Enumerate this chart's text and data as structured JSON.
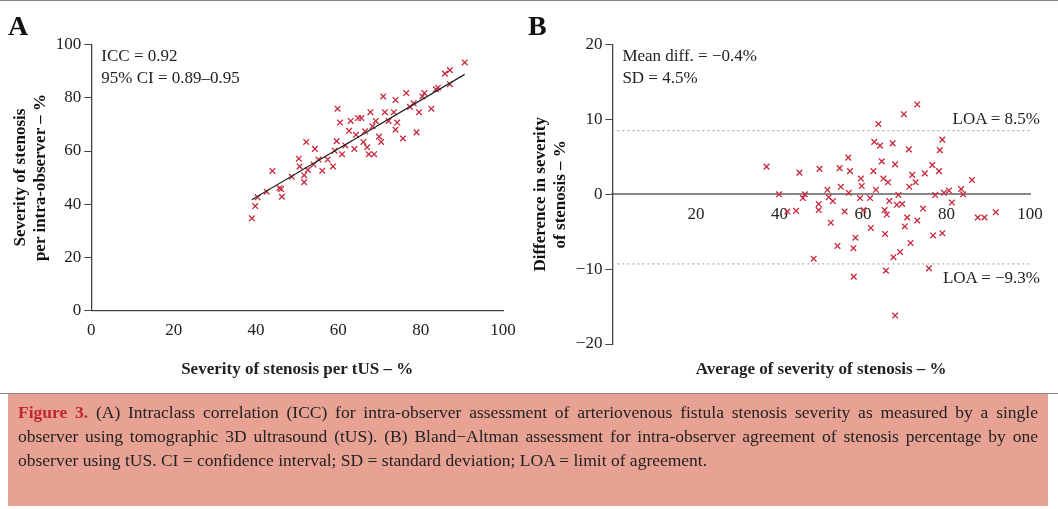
{
  "chart_data": [
    {
      "type": "scatter",
      "title": "A",
      "xlabel": "Severity of stenosis per tUS – %",
      "ylabel": "Severity of stenosis per intra-observer – %",
      "xlim": [
        0,
        100
      ],
      "xticks": [
        0,
        20,
        40,
        60,
        80,
        100
      ],
      "ylim": [
        0,
        100
      ],
      "yticks": [
        0,
        20,
        40,
        60,
        80,
        100
      ],
      "grid": false,
      "legend": false,
      "marker": "cross",
      "annotations": [
        "ICC = 0.92",
        "95% CI = 0.89–0.95"
      ],
      "series": [
        {
          "color": "#c8283c",
          "x": [
            39,
            39.8,
            40.4,
            42.6,
            44,
            45.7,
            46.3,
            46.1,
            48.7,
            50.4,
            50.6,
            51.7,
            51.7,
            52.2,
            52.6,
            54,
            54.3,
            55.2,
            56.1,
            57.4,
            58.7,
            59.1,
            59.6,
            59.8,
            60.4,
            60.9,
            61.7,
            62.6,
            63,
            63.9,
            64.3,
            64.8,
            65.6,
            66.1,
            66.5,
            67,
            67.4,
            67.8,
            68.3,
            68.7,
            69.1,
            69.9,
            70.4,
            70.9,
            71.3,
            72.2,
            73.5,
            73.9,
            73.9,
            74.3,
            75.7,
            76.5,
            77.4,
            78.3,
            79,
            79.6,
            80.4,
            80.9,
            82.6,
            83.7,
            84.2,
            85.9,
            87.1,
            87.1,
            90.7
          ],
          "values": [
            34.7,
            39.3,
            42.6,
            44.7,
            52.5,
            46,
            42.8,
            45.7,
            50.3,
            57.1,
            54.2,
            48.3,
            50.9,
            63.4,
            52.9,
            54.9,
            60.8,
            56.8,
            52.6,
            56.8,
            54.2,
            60.1,
            63.7,
            75.9,
            70.7,
            58.8,
            62.1,
            67.6,
            71.3,
            60.8,
            66.1,
            72.4,
            72.4,
            63.4,
            67.4,
            61.4,
            58.8,
            74.6,
            69.3,
            58.8,
            71.3,
            65.4,
            63.4,
            80.5,
            74.6,
            71.3,
            74.6,
            79.2,
            68,
            70.7,
            64.7,
            81.8,
            76.6,
            77.9,
            67,
            74.6,
            80.5,
            81.8,
            75.9,
            83.2,
            83.8,
            89.1,
            90.4,
            85.1,
            93.3
          ]
        },
        {
          "type": "line",
          "color": "#222222",
          "marker": "none",
          "x": [
            39,
            90.7
          ],
          "values": [
            41.7,
            88.8
          ]
        }
      ]
    },
    {
      "type": "scatter",
      "title": "B",
      "xlabel": "Average of severity of stenosis – %",
      "ylabel": "Difference in severity of stenosis – %",
      "xlim": [
        0,
        100
      ],
      "xticks": [
        20,
        40,
        60,
        80,
        100
      ],
      "ylim": [
        -20,
        20
      ],
      "yticks": [
        {
          "value": -20,
          "label": "−20"
        },
        {
          "value": -10,
          "label": "−10"
        },
        0,
        10,
        20
      ],
      "grid": false,
      "legend": false,
      "marker": "cross",
      "annotations": [
        "Mean diff. = −0.4%",
        "SD = 4.5%"
      ],
      "ref_lines": [
        {
          "axis": "y",
          "value": 8.5,
          "label": "LOA = 8.5%",
          "color": "#999999",
          "line_style": "dotted"
        },
        {
          "axis": "y",
          "value": -9.3,
          "label": "LOA = −9.3%",
          "color": "#999999",
          "line_style": "dotted"
        }
      ],
      "series": [
        {
          "color": "#c8283c",
          "x": [
            36.9,
            39.9,
            41.9,
            44,
            44.8,
            45.6,
            46.1,
            48.2,
            49.6,
            49.4,
            49.4,
            51.5,
            51.8,
            52.3,
            52.8,
            53.9,
            54.4,
            54.7,
            55.6,
            56.5,
            56.6,
            56.9,
            57.7,
            57.8,
            58.2,
            59.3,
            59.5,
            59.7,
            60.1,
            61.7,
            61.9,
            62.5,
            62.7,
            63.1,
            63.7,
            64.1,
            64.5,
            64.9,
            65.2,
            65.3,
            65.5,
            65.7,
            66,
            66.3,
            67.1,
            67.3,
            67.7,
            67.7,
            68.1,
            68.5,
            68.9,
            69.4,
            69.8,
            70,
            70.6,
            71,
            71.1,
            71.4,
            71.8,
            72.6,
            73,
            73,
            74.4,
            74.8,
            75.8,
            76.6,
            76.8,
            77.3,
            78.2,
            78.4,
            79,
            79,
            79.4,
            80.6,
            81.3,
            83.5,
            84,
            86.1,
            87.5,
            89.1,
            91.8
          ],
          "values": [
            3.7,
            0,
            -2.3,
            -2.2,
            2.9,
            -0.5,
            0,
            -8.6,
            3.4,
            -1.3,
            -2.1,
            0.6,
            -0.4,
            -3.8,
            -0.9,
            -6.9,
            3.5,
            1,
            -2.3,
            4.9,
            0.2,
            3.1,
            -7.2,
            -11,
            -5.8,
            -0.5,
            2.1,
            1.1,
            -2.1,
            -0.5,
            -4.5,
            3.1,
            7,
            0.6,
            9.4,
            6.5,
            4.4,
            2.1,
            -2.1,
            -5.3,
            -10.2,
            -2.7,
            1.6,
            -0.9,
            6.8,
            -8.4,
            4,
            -16.2,
            -1.4,
            -0.1,
            -7.7,
            -1.3,
            10.7,
            -4.3,
            -3.1,
            6,
            1,
            -6.5,
            2.6,
            1.6,
            -3.5,
            12,
            -1.9,
            2.8,
            -9.9,
            3.9,
            -5.5,
            -0.1,
            3.1,
            5.9,
            7.3,
            -5.2,
            0.2,
            0.5,
            -1.1,
            0.7,
            0,
            1.9,
            -3.1,
            -3.1,
            -2.4
          ]
        }
      ]
    },
    {
      "type": "other",
      "title": "Figure 3.",
      "annotations": [
        "(A) Intraclass correlation (ICC) for intra-observer assessment of arteriovenous fistula stenosis severity as measured by a single observer using tomographic 3D ultrasound (tUS). (B) Bland−Altman assessment for intra-observer agreement of stenosis percentage by one observer using tUS. CI = confidence interval; SD = standard deviation; LOA = limit of agreement."
      ]
    }
  ]
}
